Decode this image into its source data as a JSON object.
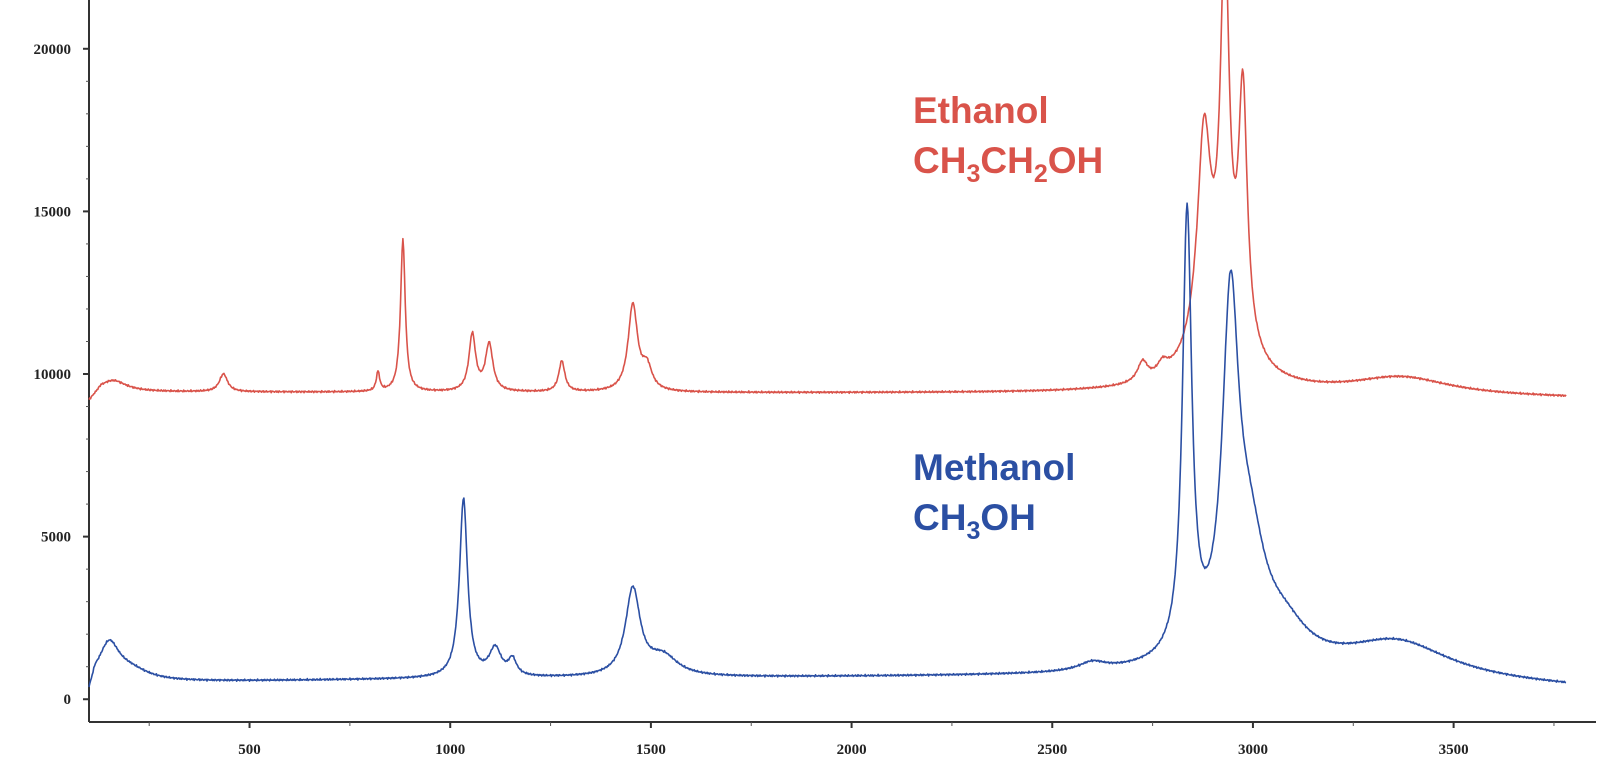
{
  "chart_data": {
    "type": "line",
    "xlim": [
      100,
      3780
    ],
    "ylim": [
      -700,
      21500
    ],
    "x_ticks": [
      500,
      1000,
      1500,
      2000,
      2500,
      3000,
      3500
    ],
    "y_ticks": [
      0,
      5000,
      10000,
      15000,
      20000
    ],
    "x_tick_labels": [
      "500",
      "1000",
      "1500",
      "2000",
      "2500",
      "3000",
      "3500"
    ],
    "y_tick_labels": [
      "0",
      "5000",
      "10000",
      "15000",
      "20000"
    ],
    "grid": false,
    "series": [
      {
        "name": "Ethanol CH3CH2OH",
        "label_parts": [
          {
            "text": "Ethanol",
            "sub": false,
            "line": 1
          },
          {
            "text": "CH",
            "sub": false,
            "line": 2
          },
          {
            "text": "3",
            "sub": true,
            "line": 2
          },
          {
            "text": "CH",
            "sub": false,
            "line": 2
          },
          {
            "text": "2",
            "sub": true,
            "line": 2
          },
          {
            "text": "OH",
            "sub": false,
            "line": 2
          }
        ],
        "color": "#d9534a",
        "baseline": 9400,
        "baseline_ramp": [
          [
            100,
            9100
          ],
          [
            130,
            9450
          ],
          [
            2600,
            9400
          ],
          [
            3780,
            9250
          ]
        ],
        "peaks": [
          {
            "x": 160,
            "h": 350,
            "w": 40
          },
          {
            "x": 435,
            "h": 550,
            "w": 12
          },
          {
            "x": 820,
            "h": 600,
            "w": 5
          },
          {
            "x": 882,
            "h": 4700,
            "w": 7
          },
          {
            "x": 1055,
            "h": 1750,
            "w": 10
          },
          {
            "x": 1097,
            "h": 1450,
            "w": 11
          },
          {
            "x": 1278,
            "h": 950,
            "w": 9
          },
          {
            "x": 1455,
            "h": 2650,
            "w": 14
          },
          {
            "x": 1490,
            "h": 700,
            "w": 15
          },
          {
            "x": 2725,
            "h": 600,
            "w": 15
          },
          {
            "x": 2775,
            "h": 350,
            "w": 15
          },
          {
            "x": 2878,
            "h": 6300,
            "w": 20
          },
          {
            "x": 2930,
            "h": 11000,
            "w": 13
          },
          {
            "x": 2975,
            "h": 7600,
            "w": 13
          },
          {
            "x": 2920,
            "h": 2000,
            "w": 70
          },
          {
            "x": 3370,
            "h": 550,
            "w": 150
          }
        ]
      },
      {
        "name": "Methanol CH3OH",
        "label_parts": [
          {
            "text": "Methanol",
            "sub": false,
            "line": 1
          },
          {
            "text": "CH",
            "sub": false,
            "line": 2
          },
          {
            "text": "3",
            "sub": true,
            "line": 2
          },
          {
            "text": "OH",
            "sub": false,
            "line": 2
          }
        ],
        "color": "#2b4fa3",
        "baseline": 600,
        "baseline_ramp": [
          [
            100,
            0
          ],
          [
            115,
            500
          ],
          [
            1000,
            620
          ],
          [
            2500,
            700
          ],
          [
            3000,
            800
          ],
          [
            3780,
            350
          ]
        ],
        "peaks": [
          {
            "x": 150,
            "h": 1100,
            "w": 30
          },
          {
            "x": 200,
            "h": 350,
            "w": 60
          },
          {
            "x": 1033,
            "h": 5500,
            "w": 12
          },
          {
            "x": 1112,
            "h": 850,
            "w": 18
          },
          {
            "x": 1155,
            "h": 500,
            "w": 12
          },
          {
            "x": 1455,
            "h": 2650,
            "w": 22
          },
          {
            "x": 1530,
            "h": 600,
            "w": 45
          },
          {
            "x": 2600,
            "h": 250,
            "w": 40
          },
          {
            "x": 2836,
            "h": 13500,
            "w": 14
          },
          {
            "x": 2944,
            "h": 10000,
            "w": 24
          },
          {
            "x": 2990,
            "h": 3400,
            "w": 50
          },
          {
            "x": 3080,
            "h": 900,
            "w": 70
          },
          {
            "x": 3360,
            "h": 1100,
            "w": 160
          }
        ]
      }
    ]
  }
}
